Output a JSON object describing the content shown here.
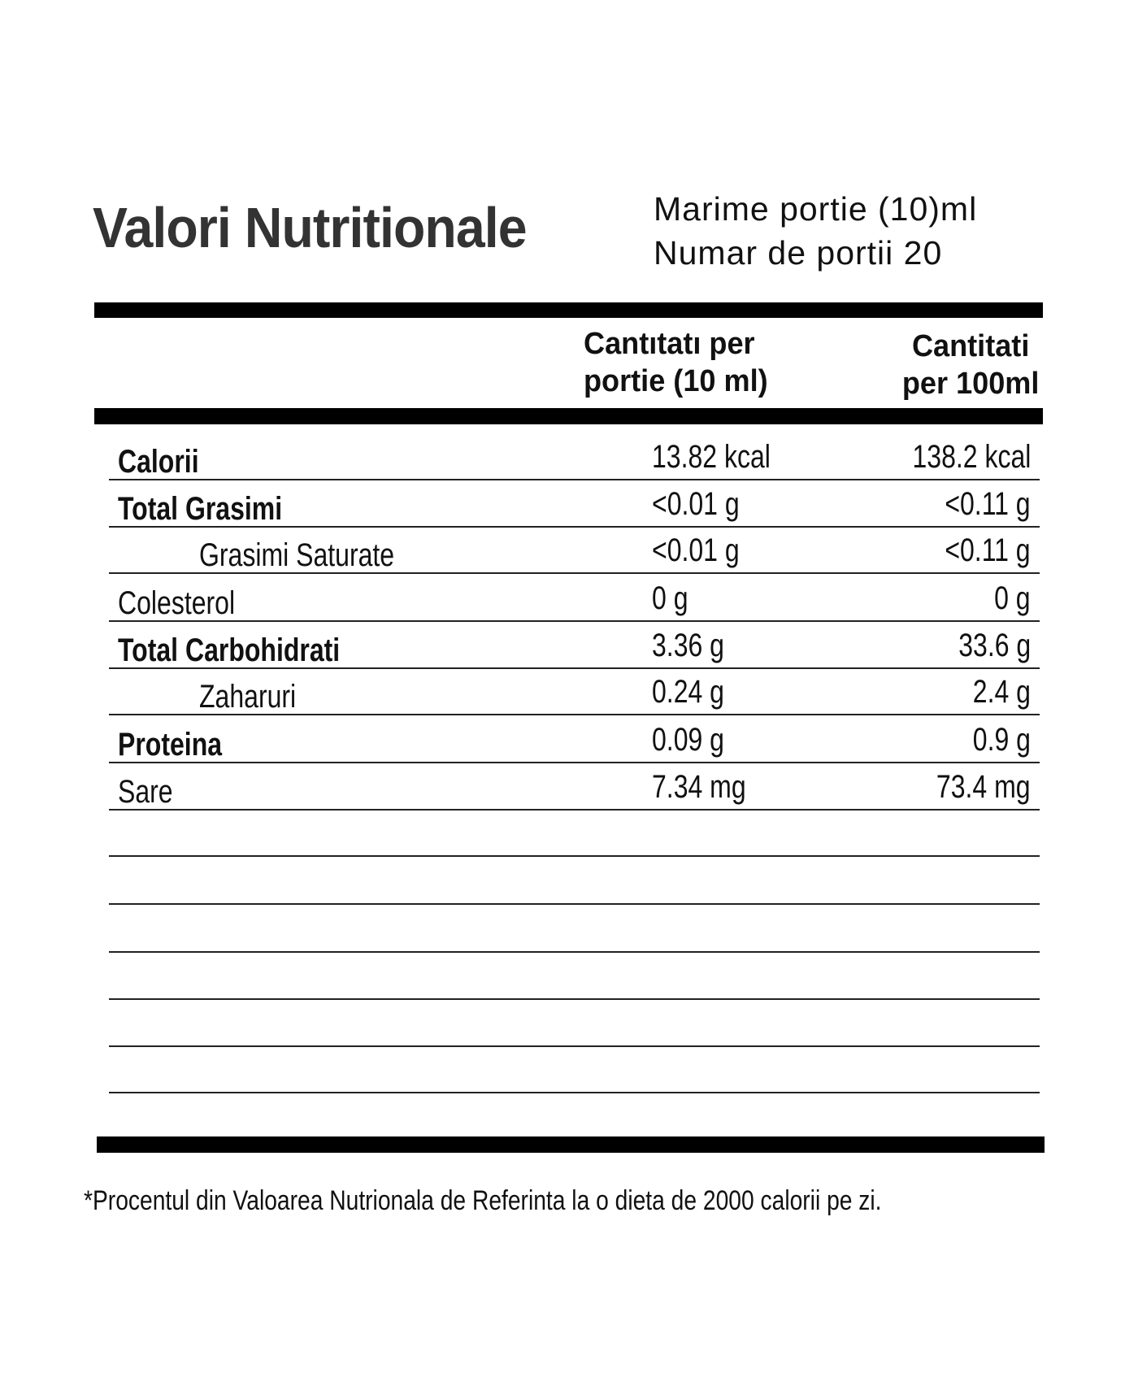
{
  "title": "Valori Nutritionale",
  "serving_size": "Marime portie (10)ml",
  "servings_count": "Numar de portii 20",
  "columns": {
    "per_serving_line1": "Cantıtatı per",
    "per_serving_line2": "portie (10 ml)",
    "per_100_line1": "Cantitati",
    "per_100_line2": "per 100ml"
  },
  "rows": [
    {
      "label": "Calorii",
      "per_serving": "13.82 kcal",
      "per_100ml": "138.2 kcal"
    },
    {
      "label": "Total Grasimi",
      "per_serving": "<0.01 g",
      "per_100ml": "<0.11 g"
    },
    {
      "label": "Grasimi Saturate",
      "per_serving": "<0.01 g",
      "per_100ml": "<0.11 g"
    },
    {
      "label": "Colesterol",
      "per_serving": "0 g",
      "per_100ml": "0 g"
    },
    {
      "label": "Total Carbohidrati",
      "per_serving": "3.36 g",
      "per_100ml": "33.6 g"
    },
    {
      "label": "Zaharuri",
      "per_serving": "0.24 g",
      "per_100ml": "2.4 g"
    },
    {
      "label": "Proteina",
      "per_serving": "0.09 g",
      "per_100ml": "0.9 g"
    },
    {
      "label": "Sare",
      "per_serving": "7.34 mg",
      "per_100ml": "73.4 mg"
    }
  ],
  "footnote": "*Procentul din Valoarea Nutrionala de Referinta la o dieta de 2000 calorii pe zi."
}
